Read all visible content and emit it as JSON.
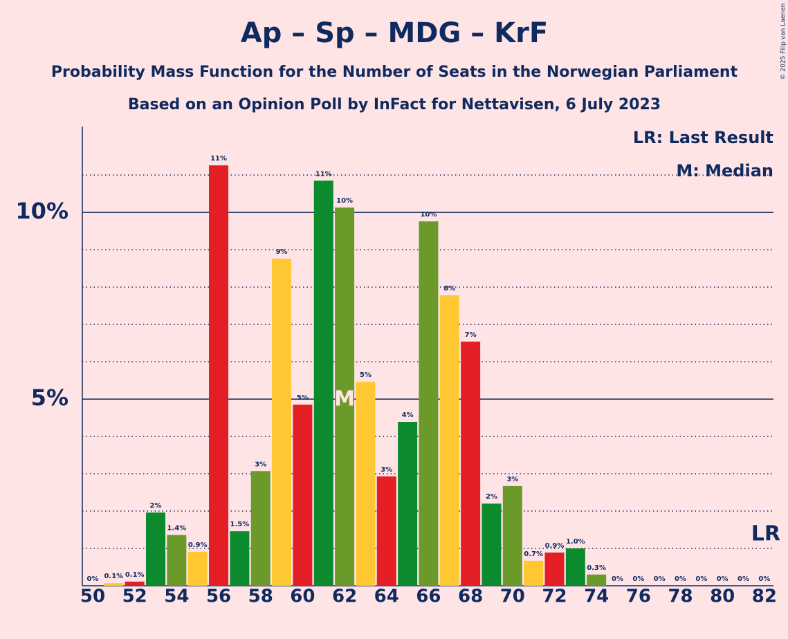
{
  "chart_data": {
    "type": "bar",
    "title": "Ap – Sp – MDG – KrF",
    "subtitle": "Probability Mass Function for the Number of Seats in the Norwegian Parliament",
    "subtitle2": "Based on an Opinion Poll by InFact for Nettavisen, 6 July 2023",
    "copyright": "© 2025 Filip van Laenen",
    "categories": [
      50,
      null,
      52,
      null,
      54,
      null,
      56,
      null,
      58,
      null,
      60,
      null,
      62,
      null,
      64,
      null,
      66,
      null,
      68,
      null,
      70,
      null,
      72,
      null,
      74,
      null,
      76,
      null,
      78,
      null,
      80,
      null,
      82
    ],
    "values": [
      0,
      0.07,
      0.11,
      1.96,
      1.36,
      0.91,
      11.26,
      1.46,
      3.07,
      8.76,
      4.85,
      10.85,
      10.13,
      5.46,
      2.93,
      4.39,
      9.76,
      7.78,
      6.54,
      2.2,
      2.67,
      0.67,
      0.89,
      1.0,
      0.3,
      0,
      0,
      0,
      0,
      0,
      0,
      0,
      0
    ],
    "value_labels": [
      "0%",
      "0.1%",
      "0.1%",
      "2%",
      "1.4%",
      "0.9%",
      "11%",
      "1.5%",
      "3%",
      "9%",
      "5%",
      "11%",
      "10%",
      "5%",
      "3%",
      "4%",
      "10%",
      "8%",
      "7%",
      "2%",
      "3%",
      "0.7%",
      "0.9%",
      "1.0%",
      "0.3%",
      "0%",
      "0%",
      "0%",
      "0%",
      "0%",
      "0%",
      "0%",
      "0%"
    ],
    "colors": [
      "#6c9a2a",
      "#ffc832",
      "#e31e24",
      "#0b8a2e"
    ],
    "ylim": [
      0,
      12.3
    ],
    "yticks": [
      {
        "value": 5,
        "label": "5%"
      },
      {
        "value": 10,
        "label": "10%"
      }
    ],
    "minor_yticks": [
      1,
      2,
      3,
      4,
      6,
      7,
      8,
      9,
      11
    ],
    "median_label": "M",
    "last_result_label": "LR",
    "legend": [
      "LR: Last Result",
      "M: Median"
    ]
  }
}
